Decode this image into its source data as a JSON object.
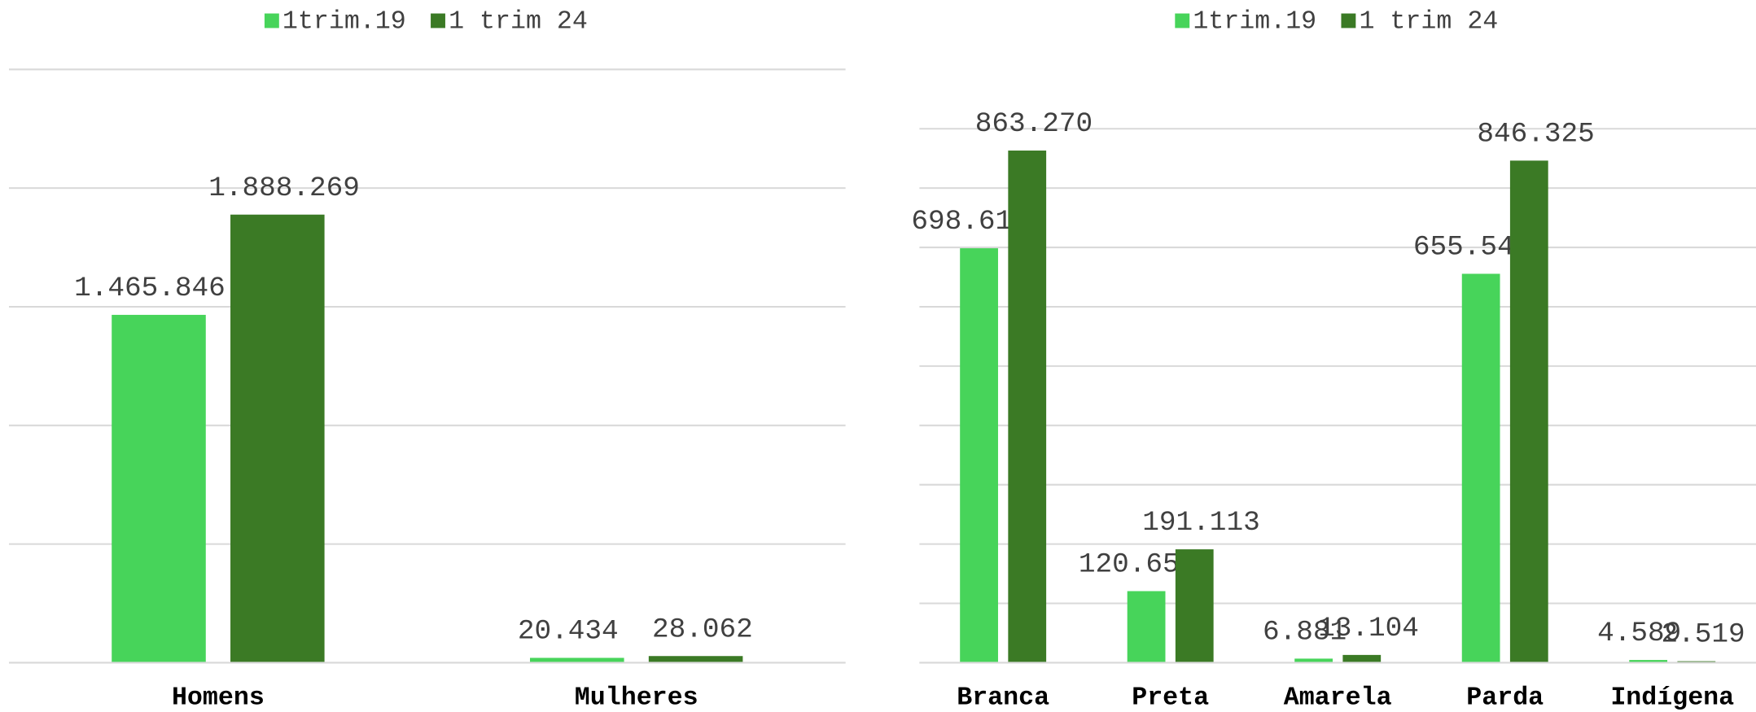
{
  "chart_data": [
    {
      "type": "bar",
      "categories": [
        "Homens",
        "Mulheres"
      ],
      "series": [
        {
          "name": "1trim.19",
          "color": "#47d45a",
          "values": [
            1465846,
            20434
          ],
          "value_labels": [
            "1.465.846",
            "20.434"
          ]
        },
        {
          "name": "1 trim 24",
          "color": "#3b7a25",
          "values": [
            1888269,
            28062
          ],
          "value_labels": [
            "1.888.269",
            "28.062"
          ]
        }
      ],
      "ylim": [
        0,
        2500000
      ],
      "yticks": [
        0,
        500000,
        1000000,
        1500000,
        2000000,
        2500000
      ],
      "grid": true,
      "legend": "top"
    },
    {
      "type": "bar",
      "categories": [
        "Branca",
        "Preta",
        "Amarela",
        "Parda",
        "Indígena"
      ],
      "series": [
        {
          "name": "1trim.19",
          "color": "#47d45a",
          "values": [
            698611,
            120654,
            6881,
            655545,
            4589
          ],
          "value_labels": [
            "698.611",
            "120.654",
            "6.881",
            "655.545",
            "4.589"
          ]
        },
        {
          "name": "1 trim 24",
          "color": "#3b7a25",
          "values": [
            863270,
            191113,
            13104,
            846325,
            2519
          ],
          "value_labels": [
            "863.270",
            "191.113",
            "13.104",
            "846.325",
            "2.519"
          ]
        }
      ],
      "ylim": [
        0,
        1000000
      ],
      "yticks": [
        0,
        100000,
        200000,
        300000,
        400000,
        500000,
        600000,
        700000,
        800000,
        900000
      ],
      "grid": true,
      "legend": "top"
    }
  ]
}
